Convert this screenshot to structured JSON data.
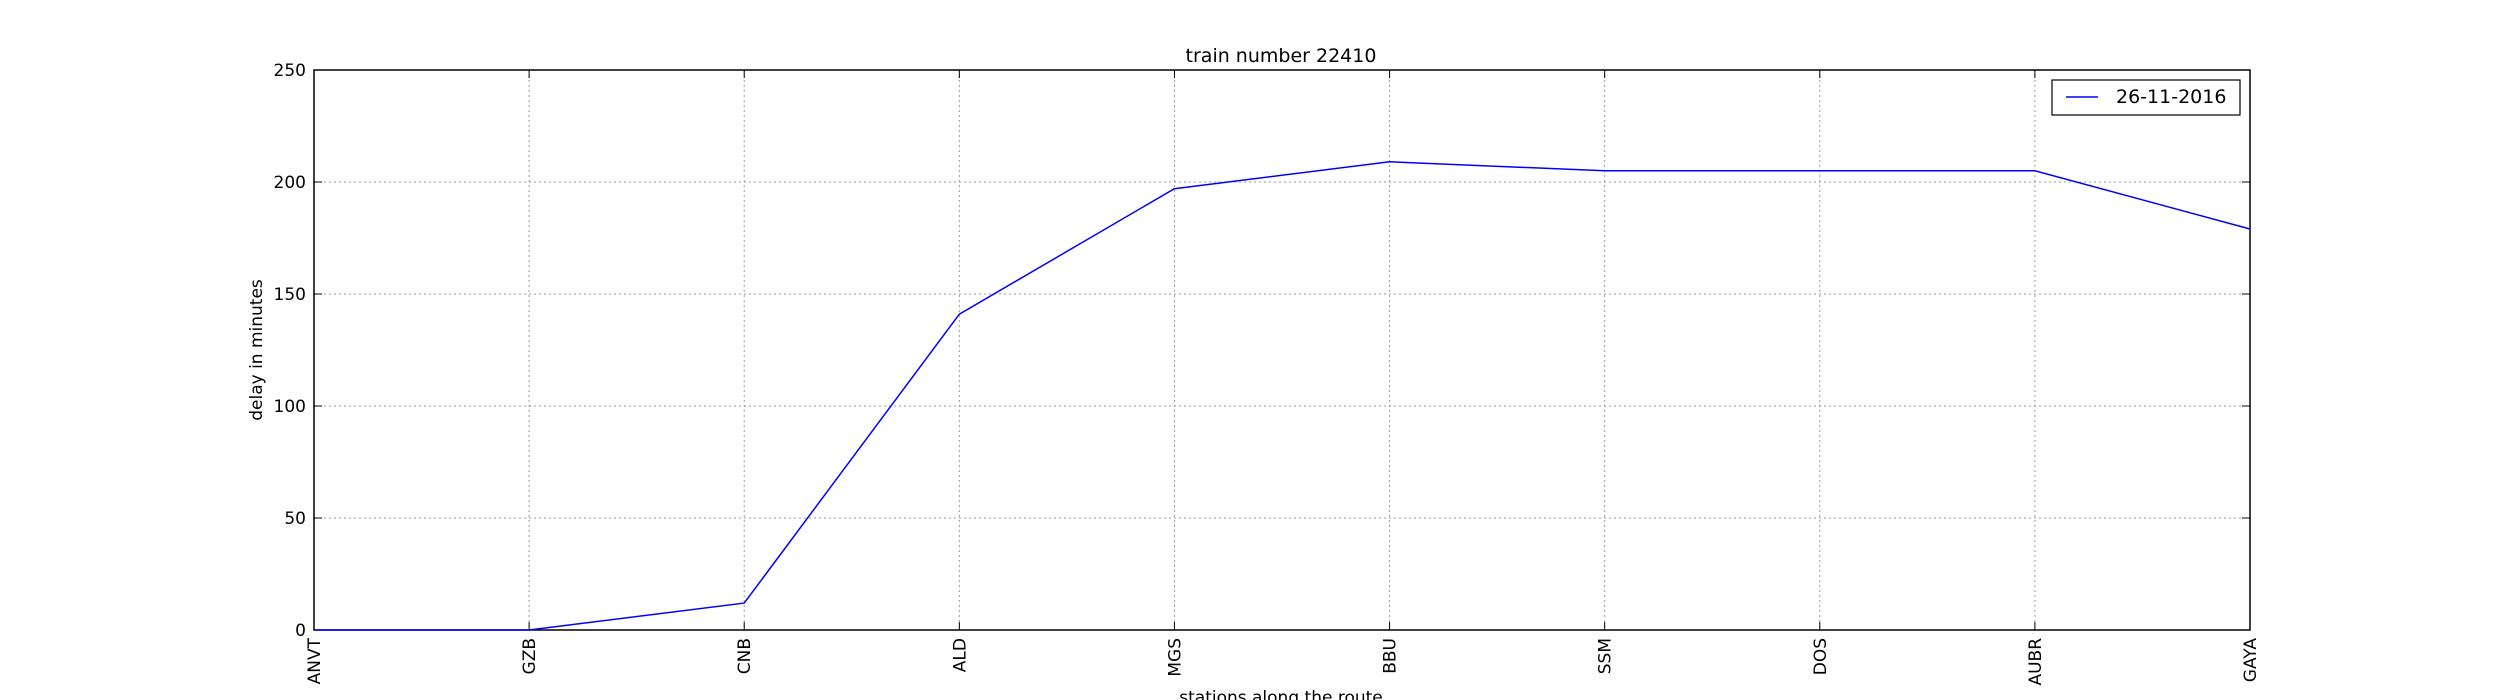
{
  "chart_data": {
    "type": "line",
    "title": "train number 22410",
    "xlabel": "stations along the route",
    "ylabel": "delay in minutes",
    "categories": [
      "ANVT",
      "GZB",
      "CNB",
      "ALD",
      "MGS",
      "BBU",
      "SSM",
      "DOS",
      "AUBR",
      "GAYA"
    ],
    "ylim": [
      0,
      250
    ],
    "yticks": [
      0,
      50,
      100,
      150,
      200,
      250
    ],
    "grid": true,
    "legend_position": "top-right",
    "series": [
      {
        "name": "26-11-2016",
        "color": "#0000ff",
        "values": [
          0,
          0,
          12,
          141,
          197,
          209,
          205,
          205,
          205,
          179
        ]
      }
    ]
  }
}
